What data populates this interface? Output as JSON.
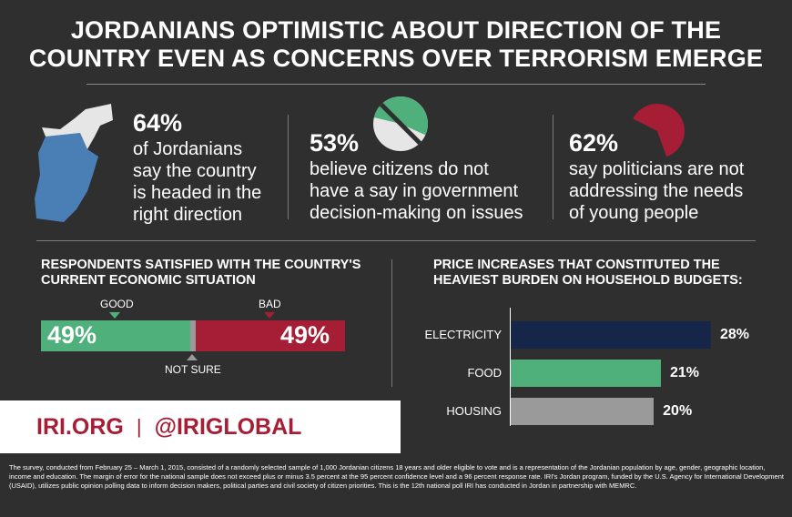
{
  "header": {
    "title_line1": "JORDANIANS OPTIMISTIC ABOUT DIRECTION OF THE",
    "title_line2": "COUNTRY EVEN AS CONCERNS OVER TERRORISM EMERGE"
  },
  "stats": [
    {
      "pct": "64%",
      "lines": [
        "of Jordanians",
        "say the country",
        "is headed in the",
        "right direction"
      ],
      "icon": "jordan-map-icon",
      "value": 64,
      "color": "#4a7fb5"
    },
    {
      "pct": "53%",
      "lines": [
        "believe citizens do not",
        "have a say in government",
        "decision-making on issues"
      ],
      "icon": "pie-icon",
      "value": 53,
      "color": "#4fb07c"
    },
    {
      "pct": "62%",
      "lines": [
        "say politicians are not",
        "addressing the needs",
        "of young people"
      ],
      "icon": "pie-icon",
      "value": 62,
      "color": "#a61e36"
    }
  ],
  "satisfaction": {
    "title_line1": "RESPONDENTS SATISFIED WITH THE COUNTRY'S",
    "title_line2": "CURRENT ECONOMIC SITUATION",
    "good_label": "GOOD",
    "bad_label": "BAD",
    "notsure_label": "NOT SURE",
    "good_text": "49%",
    "bad_text": "49%"
  },
  "burden": {
    "title_line1": "PRICE INCREASES THAT CONSTITUTED THE",
    "title_line2": "HEAVIEST BURDEN ON HOUSEHOLD BUDGETS:"
  },
  "chart_data": [
    {
      "type": "bar",
      "orientation": "stacked-horizontal",
      "title": "RESPONDENTS SATISFIED WITH THE COUNTRY'S CURRENT ECONOMIC SITUATION",
      "categories": [
        "GOOD",
        "NOT SURE",
        "BAD"
      ],
      "values": [
        49,
        2,
        49
      ],
      "colors": [
        "#4fb07c",
        "#9a9a9a",
        "#a61e36"
      ]
    },
    {
      "type": "bar",
      "orientation": "horizontal",
      "title": "PRICE INCREASES THAT CONSTITUTED THE HEAVIEST BURDEN ON HOUSEHOLD BUDGETS:",
      "categories": [
        "ELECTRICITY",
        "FOOD",
        "HOUSING"
      ],
      "values": [
        28,
        21,
        20
      ],
      "labels": [
        "28%",
        "21%",
        "20%"
      ],
      "colors": [
        "#15264a",
        "#4fb07c",
        "#9a9a9a"
      ]
    }
  ],
  "banner": {
    "site": "IRI.ORG",
    "separator": "|",
    "handle": "@IRIGLOBAL"
  },
  "footnote": "The survey, conducted from February 25 – March 1, 2015, consisted of a randomly selected sample of 1,000 Jordanian citizens 18 years and older eligible to vote and is a representation of the Jordanian population by age, gender, geographic location, income and education. The margin of error for the national sample does not exceed plus or minus 3.5 percent at the 95 percent confidence level and a 96 percent response rate. IRI's Jordan program, funded by the U.S. Agency for International Development (USAID), utilizes public opinion polling data to inform decision makers, political parties and civil society of citizen priorities. This is the 12th national poll IRI has conducted in Jordan in partnership with MEMRC."
}
